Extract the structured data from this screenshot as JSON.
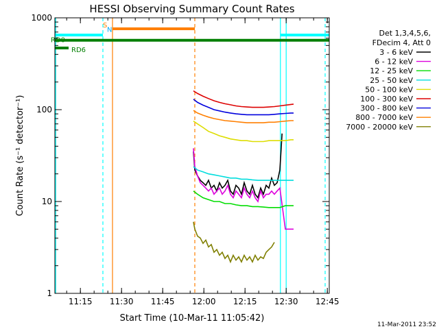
{
  "chart_data": {
    "type": "line",
    "title": "HESSI Observing Summary Count Rates",
    "xlabel": "Start Time (10-Mar-11 11:05:42)",
    "ylabel": "Count Rate (s⁻¹ detector⁻¹)",
    "y_scale": "log",
    "ylim": [
      1,
      1000
    ],
    "xlim_minutes": [
      0,
      100
    ],
    "x_ticks": [
      {
        "label": "11:15",
        "t": 9.3
      },
      {
        "label": "11:30",
        "t": 24.3
      },
      {
        "label": "11:45",
        "t": 39.3
      },
      {
        "label": "12:00",
        "t": 54.3
      },
      {
        "label": "12:15",
        "t": 69.3
      },
      {
        "label": "12:30",
        "t": 84.3
      },
      {
        "label": "12:45",
        "t": 99.3
      }
    ],
    "y_ticks": [
      {
        "label": "1",
        "v": 1
      },
      {
        "label": "10",
        "v": 10
      },
      {
        "label": "100",
        "v": 100
      },
      {
        "label": "1000",
        "v": 1000
      }
    ],
    "legend_header": [
      "Det 1,3,4,5,6,",
      "FDecim 4, Att 0"
    ],
    "series": [
      {
        "name": "3 - 6 keV",
        "color": "#000000",
        "x": [
          50.5,
          51,
          52,
          53,
          54,
          55,
          56,
          57,
          58,
          59,
          60,
          61,
          62,
          63,
          64,
          65,
          66,
          67,
          68,
          69,
          70,
          71,
          72,
          73,
          74,
          75,
          76,
          77,
          78,
          79,
          80,
          81,
          82,
          82.8
        ],
        "y": [
          35,
          22,
          19,
          17,
          16,
          15,
          17,
          14,
          15,
          13,
          16,
          14,
          15,
          17,
          13,
          12,
          15,
          14,
          12,
          16,
          13,
          12,
          15,
          12,
          11,
          14,
          12,
          15,
          14,
          18,
          15,
          16,
          22,
          55
        ]
      },
      {
        "name": "6 - 12 keV",
        "color": "#dd00dd",
        "x": [
          50.5,
          51,
          52,
          53,
          54,
          55,
          56,
          57,
          58,
          59,
          60,
          61,
          62,
          63,
          64,
          65,
          66,
          67,
          68,
          69,
          70,
          71,
          72,
          73,
          74,
          75,
          76,
          77,
          78,
          79,
          80,
          81,
          82,
          84,
          86,
          87
        ],
        "y": [
          38,
          24,
          19,
          16,
          15,
          14,
          13,
          14,
          12,
          13,
          14,
          12,
          13,
          15,
          12,
          11,
          13,
          12,
          11,
          14,
          12,
          11,
          13,
          11,
          10,
          13,
          11,
          12,
          12,
          13,
          12,
          13,
          14,
          5,
          5,
          5
        ]
      },
      {
        "name": "12 - 25 keV",
        "color": "#00dd00",
        "x": [
          50.5,
          52,
          54,
          56,
          58,
          60,
          62,
          64,
          66,
          68,
          70,
          72,
          74,
          76,
          78,
          80,
          82,
          84,
          86,
          87
        ],
        "y": [
          13,
          12,
          11,
          10.5,
          10,
          10,
          9.5,
          9.5,
          9.2,
          9,
          9,
          8.8,
          8.8,
          8.7,
          8.6,
          8.6,
          8.6,
          9,
          9,
          9
        ]
      },
      {
        "name": "25 - 50 keV",
        "color": "#00dddd",
        "x": [
          50.5,
          52,
          54,
          56,
          58,
          60,
          62,
          64,
          66,
          68,
          70,
          72,
          74,
          76,
          78,
          80,
          82,
          84,
          86,
          87
        ],
        "y": [
          24,
          22,
          21,
          20,
          19.5,
          19,
          18.5,
          18,
          18,
          17.5,
          17.5,
          17.2,
          17,
          17,
          17,
          17,
          17,
          17,
          17,
          17
        ]
      },
      {
        "name": "50 - 100 keV",
        "color": "#dddd00",
        "x": [
          50.5,
          52,
          54,
          56,
          58,
          60,
          62,
          64,
          66,
          68,
          70,
          72,
          74,
          76,
          78,
          80,
          82,
          84,
          86,
          87
        ],
        "y": [
          75,
          70,
          64,
          58,
          55,
          52,
          50,
          48,
          47,
          46,
          46,
          45,
          45,
          45,
          46,
          46,
          46,
          46,
          47,
          47
        ]
      },
      {
        "name": "100 - 300 keV",
        "color": "#dd0000",
        "x": [
          50.5,
          52,
          54,
          56,
          58,
          60,
          62,
          64,
          66,
          68,
          70,
          72,
          74,
          76,
          78,
          80,
          82,
          84,
          86,
          87
        ],
        "y": [
          160,
          150,
          140,
          132,
          125,
          120,
          116,
          113,
          110,
          108,
          107,
          106,
          106,
          106,
          107,
          108,
          110,
          112,
          114,
          115
        ]
      },
      {
        "name": "300 - 800 keV",
        "color": "#0000dd",
        "x": [
          50.5,
          52,
          54,
          56,
          58,
          60,
          62,
          64,
          66,
          68,
          70,
          72,
          74,
          76,
          78,
          80,
          82,
          84,
          86,
          87
        ],
        "y": [
          130,
          120,
          112,
          106,
          100,
          97,
          94,
          92,
          90,
          89,
          88,
          88,
          88,
          88,
          88,
          89,
          90,
          91,
          92,
          92
        ]
      },
      {
        "name": "800 - 7000 keV",
        "color": "#ff7f00",
        "x": [
          50.5,
          52,
          54,
          56,
          58,
          60,
          62,
          64,
          66,
          68,
          70,
          72,
          74,
          76,
          78,
          80,
          82,
          84,
          86,
          87
        ],
        "y": [
          98,
          92,
          87,
          83,
          80,
          78,
          76,
          75,
          74,
          73,
          72,
          72,
          72,
          72,
          73,
          73,
          74,
          75,
          76,
          76
        ]
      },
      {
        "name": "7000 - 20000 keV",
        "color": "#7f7f00",
        "x": [
          50.5,
          51,
          52,
          53,
          54,
          55,
          56,
          57,
          58,
          59,
          60,
          61,
          62,
          63,
          64,
          65,
          66,
          67,
          68,
          69,
          70,
          71,
          72,
          73,
          74,
          75,
          76,
          77,
          78,
          79,
          80
        ],
        "y": [
          6,
          5,
          4.2,
          4,
          3.5,
          3.8,
          3.2,
          3.4,
          2.8,
          3,
          2.6,
          2.8,
          2.4,
          2.6,
          2.2,
          2.6,
          2.3,
          2.5,
          2.2,
          2.6,
          2.3,
          2.5,
          2.2,
          2.6,
          2.3,
          2.5,
          2.4,
          2.8,
          3,
          3.2,
          3.6
        ]
      }
    ],
    "state_bars": [
      {
        "label": "RD0",
        "color": "#007f00",
        "t0": 0,
        "t1": 100,
        "v": 570
      },
      {
        "label": "RD6",
        "color": "#007f00",
        "t0": 0,
        "t1": 5,
        "v": 470
      },
      {
        "label": "",
        "color": "#00ffff",
        "t0": 0,
        "t1": 17.5,
        "v": 650
      },
      {
        "label": "",
        "color": "#00ffff",
        "t0": 82.2,
        "t1": 100,
        "v": 650
      },
      {
        "label": "S",
        "color": "#ff7f00",
        "t0": 21,
        "t1": 51,
        "v": 760
      },
      {
        "label": "N",
        "color": "#00aaff",
        "t0": 18,
        "t1": 18,
        "v": 680
      }
    ],
    "vertical_lines": [
      {
        "t": 0.3,
        "color": "#00ffff",
        "dash": false
      },
      {
        "t": 17.5,
        "color": "#00ffff",
        "dash": true
      },
      {
        "t": 21.0,
        "color": "#ff7f00",
        "dash": false
      },
      {
        "t": 51.0,
        "color": "#ff7f00",
        "dash": true
      },
      {
        "t": 82.2,
        "color": "#00ffff",
        "dash": false
      },
      {
        "t": 84.3,
        "color": "#00ffff",
        "dash": false
      },
      {
        "t": 98.5,
        "color": "#00ffff",
        "dash": true
      }
    ],
    "grid": false,
    "legend_placement": "right"
  },
  "footer_date": "11-Mar-2011 23:52"
}
